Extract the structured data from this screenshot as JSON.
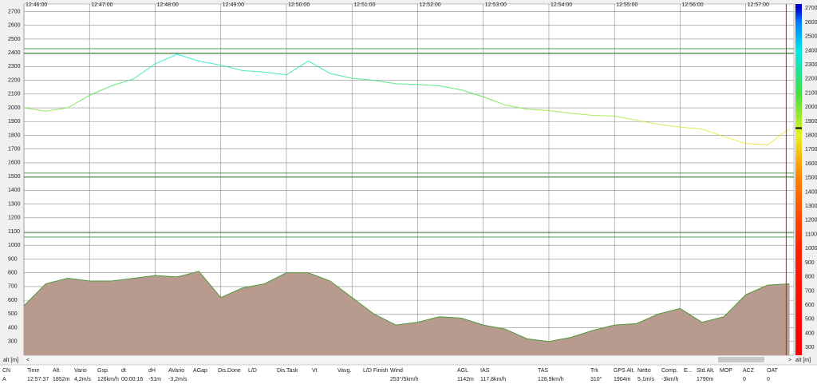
{
  "chart_data": {
    "type": "line",
    "x": [
      "12:46:00",
      "12:46:20",
      "12:46:40",
      "12:47:00",
      "12:47:20",
      "12:47:40",
      "12:48:00",
      "12:48:20",
      "12:48:40",
      "12:49:00",
      "12:49:20",
      "12:49:40",
      "12:50:00",
      "12:50:20",
      "12:50:40",
      "12:51:00",
      "12:51:20",
      "12:51:40",
      "12:52:00",
      "12:52:20",
      "12:52:40",
      "12:53:00",
      "12:53:20",
      "12:53:40",
      "12:54:00",
      "12:54:20",
      "12:54:40",
      "12:55:00",
      "12:55:20",
      "12:55:40",
      "12:56:00",
      "12:56:20",
      "12:56:40",
      "12:57:00",
      "12:57:20",
      "12:57:40"
    ],
    "series": [
      {
        "name": "alt",
        "values": [
          2000,
          1975,
          2000,
          2090,
          2160,
          2210,
          2320,
          2390,
          2340,
          2310,
          2270,
          2260,
          2240,
          2340,
          2250,
          2215,
          2200,
          2175,
          2170,
          2160,
          2130,
          2080,
          2020,
          1990,
          1980,
          1960,
          1945,
          1940,
          1910,
          1880,
          1860,
          1845,
          1790,
          1740,
          1730,
          1850
        ]
      },
      {
        "name": "ground",
        "color": "#b89a8e",
        "line_color": "#4f9a3c",
        "values": [
          560,
          720,
          760,
          740,
          740,
          760,
          780,
          770,
          810,
          620,
          690,
          720,
          800,
          800,
          740,
          620,
          500,
          420,
          440,
          480,
          470,
          420,
          390,
          320,
          300,
          330,
          380,
          420,
          430,
          500,
          540,
          440,
          480,
          640,
          710,
          720
        ]
      }
    ],
    "xlim": [
      "12:46:00",
      "12:57:44"
    ],
    "xticks": [
      "12:46:00",
      "12:47:00",
      "12:48:00",
      "12:49:00",
      "12:50:00",
      "12:51:00",
      "12:52:00",
      "12:53:00",
      "12:54:00",
      "12:55:00",
      "12:56:00",
      "12:57:00"
    ],
    "ylim": [
      200,
      2755
    ],
    "yticks": [
      300,
      400,
      500,
      600,
      700,
      800,
      900,
      1000,
      1100,
      1200,
      1300,
      1400,
      1500,
      1600,
      1700,
      1800,
      1900,
      2000,
      2100,
      2200,
      2300,
      2400,
      2500,
      2600,
      2700
    ],
    "grid": true,
    "hlines": [
      2430,
      2395,
      1525,
      1495,
      1090,
      1060
    ],
    "hline_color": "#3c8c3c",
    "cursor": {
      "x": "12:57:37",
      "y": 1852,
      "color": "#ff0000"
    },
    "colorbar_lim": [
      245,
      2730
    ],
    "colorscale": [
      {
        "value": 300,
        "color": "#ff0000"
      },
      {
        "value": 1000,
        "color": "#ff2000"
      },
      {
        "value": 1500,
        "color": "#ff8000"
      },
      {
        "value": 1800,
        "color": "#e8f020"
      },
      {
        "value": 2100,
        "color": "#40e040"
      },
      {
        "value": 2400,
        "color": "#00e8e8"
      },
      {
        "value": 2600,
        "color": "#0080ff"
      },
      {
        "value": 2700,
        "color": "#0000d0"
      }
    ],
    "y_label": "alt [m]"
  },
  "table": {
    "cells": [
      {
        "header": "CN",
        "value": "A"
      },
      {
        "header": "Time",
        "value": "12:57:37"
      },
      {
        "header": "Alt.",
        "value": "1852m"
      },
      {
        "header": "Vario",
        "value": "4,2m/s"
      },
      {
        "header": "Gsp.",
        "value": "126km/h"
      },
      {
        "header": "dt",
        "value": "00:00:16"
      },
      {
        "header": "dH",
        "value": "-51m"
      },
      {
        "header": "AVario",
        "value": "-3,2m/s"
      },
      {
        "header": "AGap"
      },
      {
        "header": "Dis.Done"
      },
      {
        "header": "L/D"
      },
      {
        "header": "Dis.Task"
      },
      {
        "header": "Vt"
      },
      {
        "header": "Vavg."
      },
      {
        "header": "L/D Finish"
      },
      {
        "header": "Wind",
        "value": "253°/5km/h"
      },
      {
        "header": "AGL",
        "value": "1142m"
      },
      {
        "header": "IAS",
        "value": "117,8km/h"
      },
      {
        "header": "TAS",
        "value": "128,9km/h"
      },
      {
        "header": "Trk",
        "value": "310°"
      },
      {
        "header": "GPS Alt.",
        "value": "1904m"
      },
      {
        "header": "Netto",
        "value": "5,1m/s"
      },
      {
        "header": "Comp.",
        "value": "-3km/h"
      },
      {
        "header": "E..."
      },
      {
        "header": "Std.Alt.",
        "value": "1790m"
      },
      {
        "header": "MOP"
      },
      {
        "header": "ACZ",
        "value": "0"
      },
      {
        "header": "OAT",
        "value": "0"
      }
    ]
  }
}
